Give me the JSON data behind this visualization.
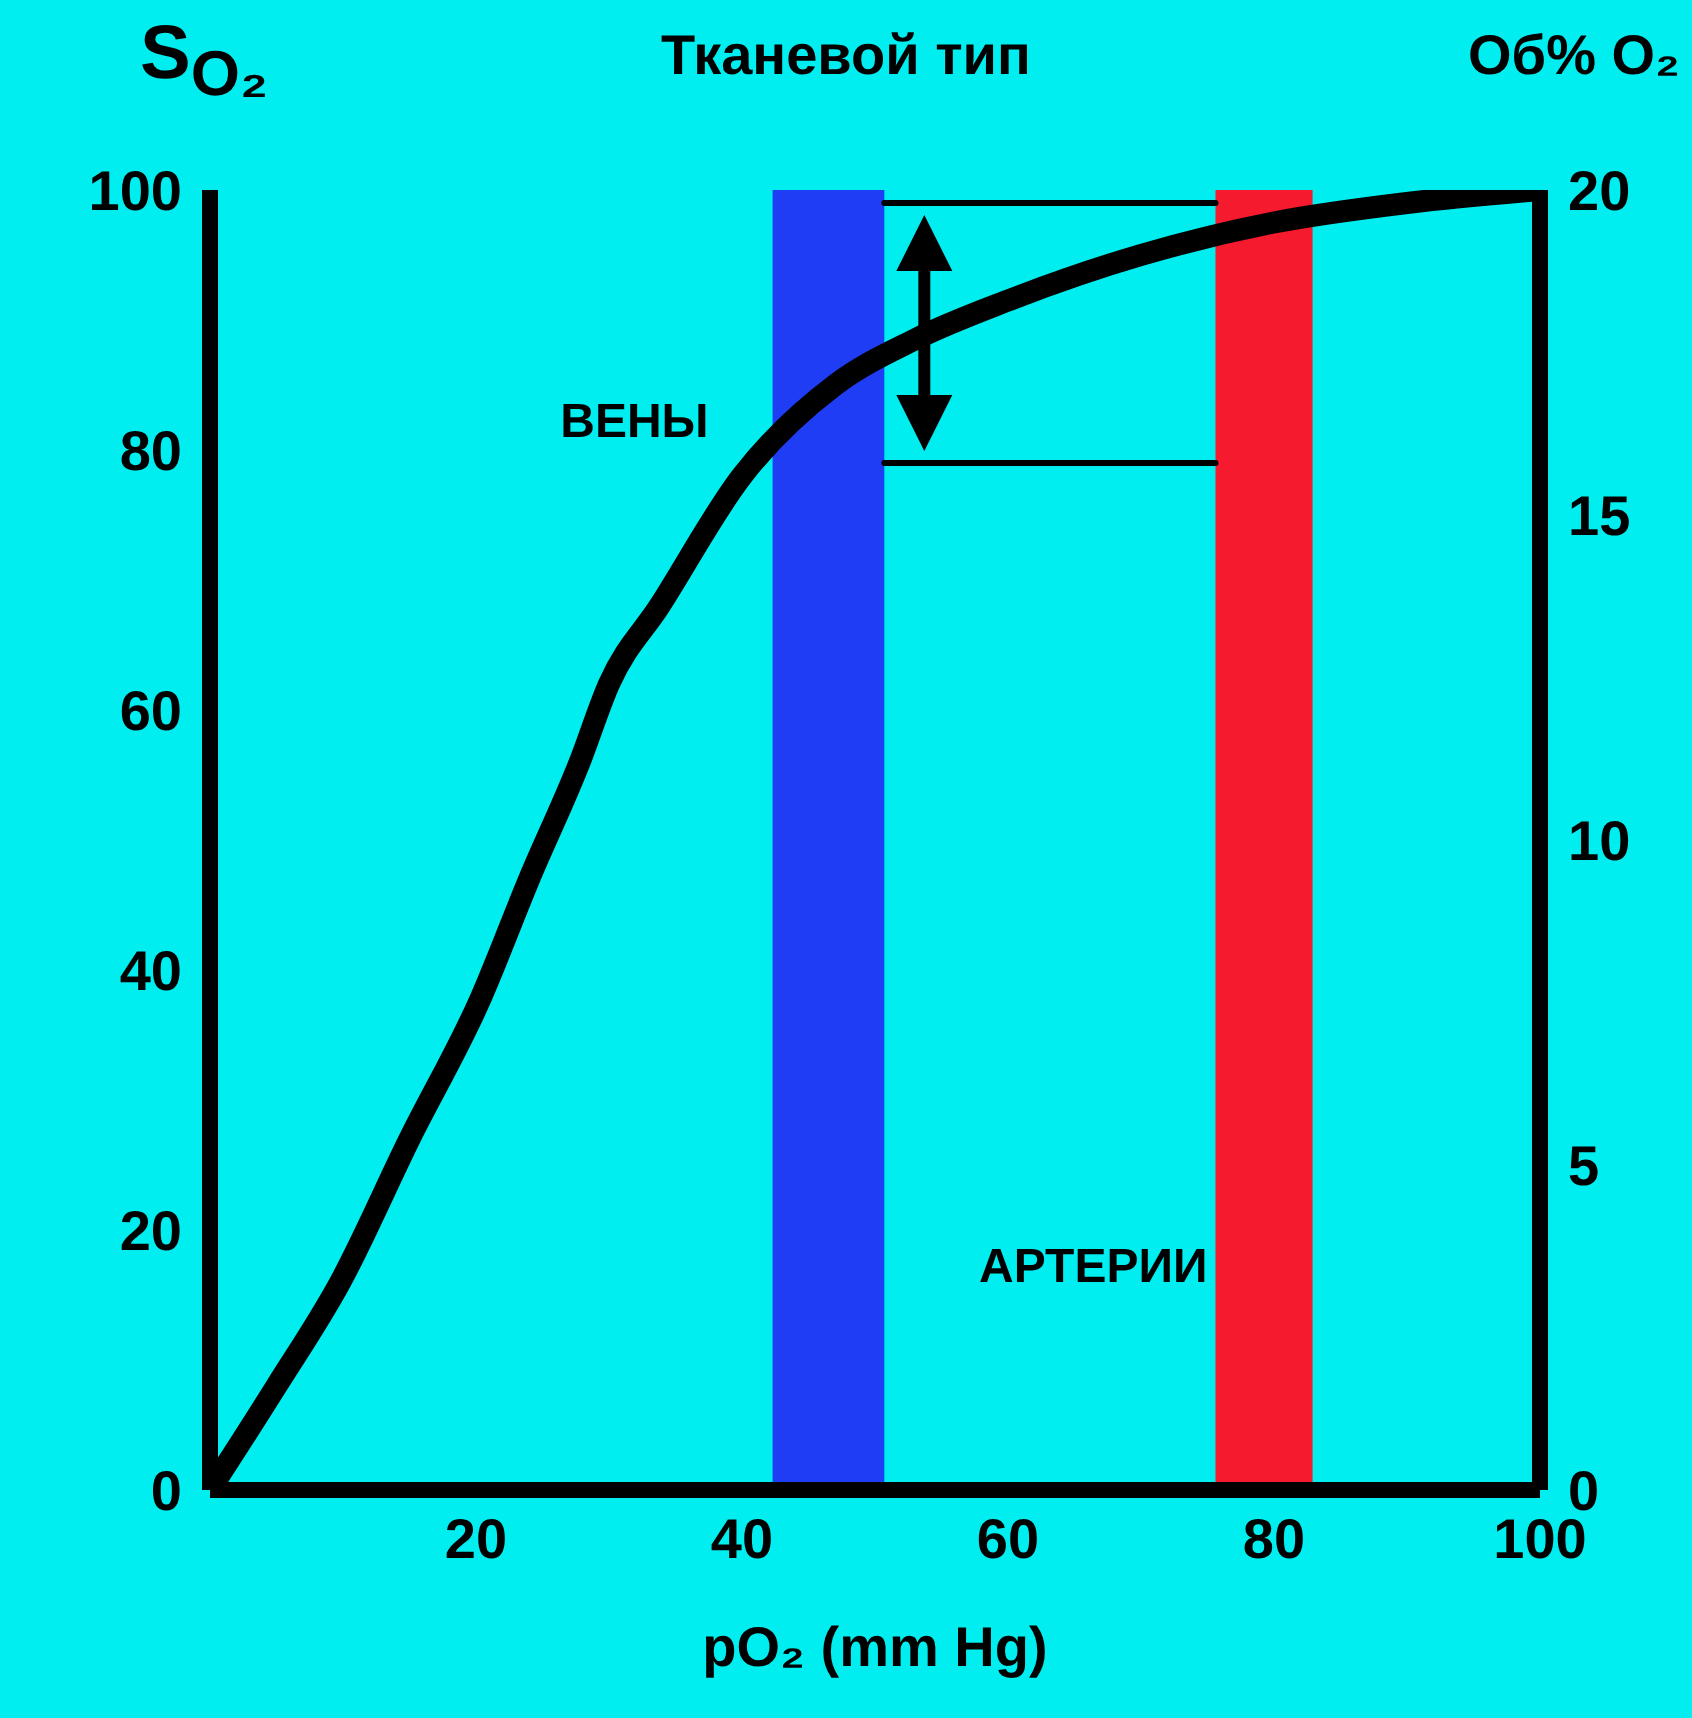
{
  "chart_data": {
    "type": "line",
    "title": "Тканевой тип",
    "xlabel": "pO₂ (mm Hg)",
    "ylabel": "S$_{O₂}$",
    "y2label": "Об% O₂",
    "xlim": [
      0,
      100
    ],
    "xticks": [
      20,
      40,
      60,
      80,
      100
    ],
    "ylim": [
      0,
      100
    ],
    "yticks": [
      0,
      20,
      40,
      60,
      80,
      100
    ],
    "y2lim": [
      0,
      20
    ],
    "y2ticks": [
      0,
      5,
      10,
      15,
      20
    ],
    "series": [
      {
        "color": "#000000",
        "x": [
          0,
          5,
          9.8,
          15,
          20.3,
          24,
          27.8,
          30,
          33.8,
          40,
          47,
          53,
          60,
          70,
          80,
          90,
          100
        ],
        "values": [
          0,
          8,
          16,
          27,
          37.7,
          47,
          56,
          62,
          68,
          78,
          85,
          88.5,
          91.5,
          95,
          97.5,
          99,
          100
        ]
      },
      {
        "color": "#000000",
        "x": [
          50.7,
          75.6
        ],
        "values": [
          99,
          99
        ]
      },
      {
        "color": "#000000",
        "x": [
          50.7,
          75.6
        ],
        "values": [
          79,
          79
        ]
      }
    ],
    "bands": [
      {
        "axis": "x",
        "from": 42.3,
        "to": 50.7,
        "label": "ВЕНЫ",
        "color": "#1f3df5"
      },
      {
        "axis": "x",
        "from": 75.6,
        "to": 82.9,
        "label": "АРТЕРИИ",
        "color": "#f51a2e"
      }
    ]
  }
}
